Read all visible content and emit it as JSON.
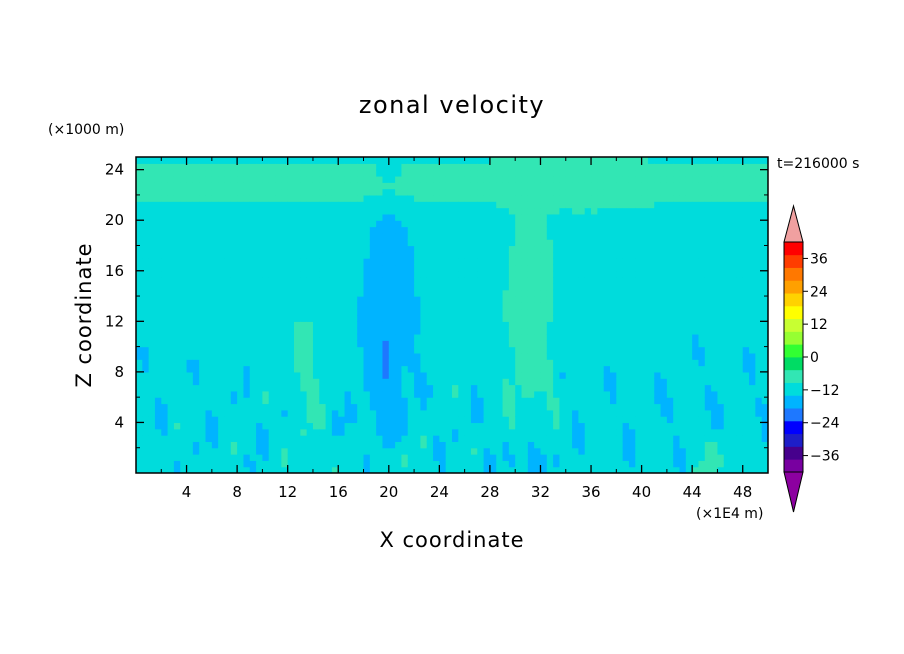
{
  "chart_data": {
    "type": "heatmap",
    "title": "zonal velocity",
    "xlabel": "X coordinate",
    "ylabel": "Z coordinate",
    "x_unit": "(×1E4 m)",
    "y_unit": "(×1000 m)",
    "time_label": "t=216000 s",
    "xlim": [
      0,
      50
    ],
    "ylim": [
      0,
      25
    ],
    "x_ticks": [
      "4",
      "8",
      "12",
      "16",
      "20",
      "24",
      "28",
      "32",
      "36",
      "40",
      "44",
      "48"
    ],
    "y_ticks": [
      "4",
      "8",
      "12",
      "16",
      "20",
      "24"
    ],
    "colorbar": {
      "min": -42,
      "max": 42,
      "step": 6,
      "tick_labels": [
        "36",
        "24",
        "12",
        "0",
        "−12",
        "−24",
        "−36"
      ],
      "tick_values": [
        36,
        24,
        12,
        0,
        -12,
        -24,
        -36
      ],
      "colors": [
        "#7800a0",
        "#46008c",
        "#1e1ec8",
        "#0000ff",
        "#1e78ff",
        "#00b4ff",
        "#00dcdc",
        "#32e6b4",
        "#00dc64",
        "#32ff32",
        "#96ff32",
        "#c8ff32",
        "#ffff00",
        "#ffd200",
        "#ffa000",
        "#ff7800",
        "#ff3c00",
        "#ff0000"
      ],
      "under_color": "#8c00a0",
      "over_color": "#f0a0a0"
    }
  }
}
